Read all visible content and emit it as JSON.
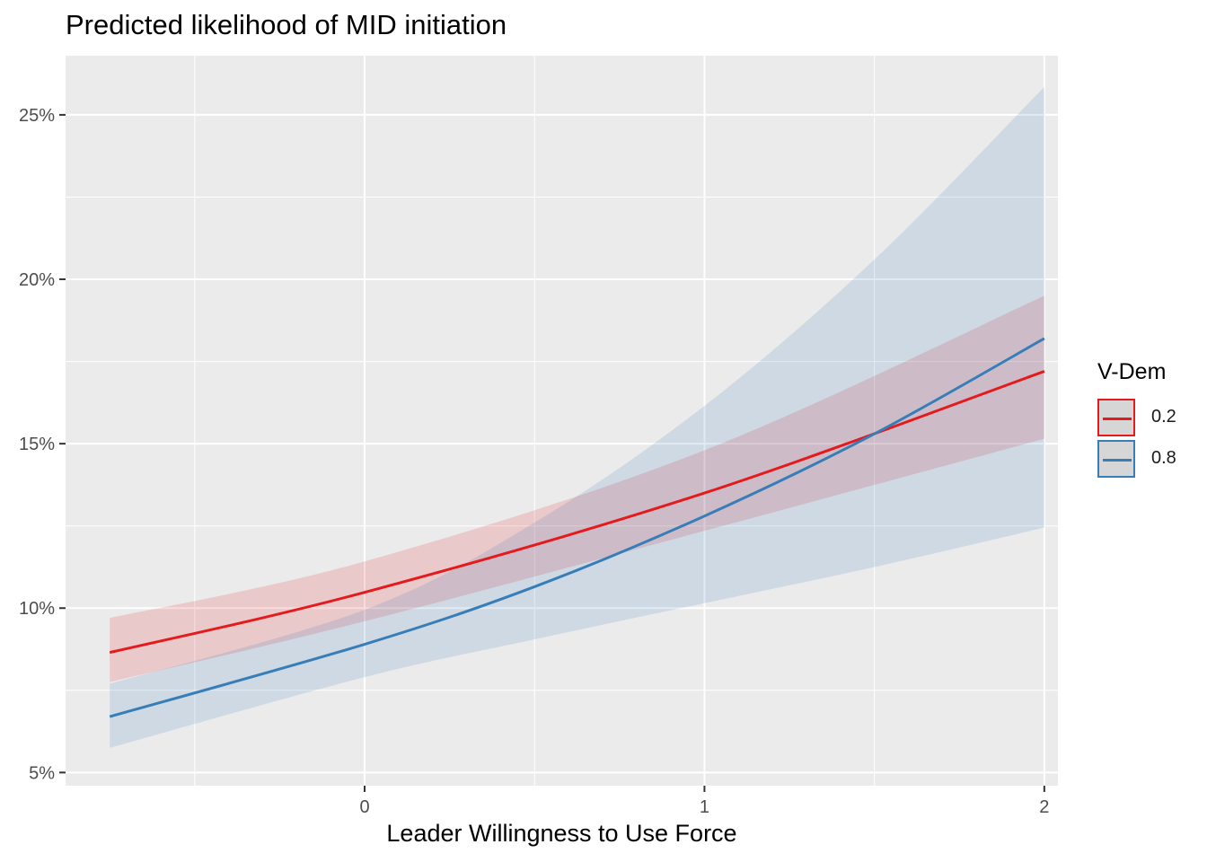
{
  "chart_data": {
    "type": "line",
    "title": "Predicted likelihood of MID initiation",
    "xlabel": "Leader Willingness to Use Force",
    "ylabel": "",
    "x_ticks": [
      0,
      1,
      2
    ],
    "x_tick_labels": [
      "0",
      "1",
      "2"
    ],
    "y_ticks": [
      5,
      10,
      15,
      20,
      25
    ],
    "y_tick_labels": [
      "5%",
      "10%",
      "15%",
      "20%",
      "25%"
    ],
    "xlim": [
      -0.88,
      2.04
    ],
    "ylim": [
      4.6,
      26.8
    ],
    "grid": true,
    "legend": {
      "title": "V-Dem",
      "position": "right"
    },
    "series": [
      {
        "name": "0.2",
        "color": "#E41A1C",
        "x": [
          -0.75,
          0,
          1,
          2
        ],
        "values": [
          8.65,
          10.48,
          13.5,
          17.2
        ],
        "lower": [
          7.75,
          9.6,
          12.35,
          15.15
        ],
        "upper": [
          9.7,
          11.42,
          14.8,
          19.5
        ]
      },
      {
        "name": "0.8",
        "color": "#377EB8",
        "x": [
          -0.75,
          0,
          0.5,
          1,
          1.5,
          2
        ],
        "values": [
          6.7,
          8.9,
          10.65,
          12.8,
          15.3,
          18.2
        ],
        "lower": [
          5.75,
          7.9,
          9.05,
          10.15,
          11.25,
          12.45
        ],
        "upper": [
          7.7,
          9.95,
          12.6,
          16.15,
          20.6,
          25.85
        ]
      }
    ]
  }
}
